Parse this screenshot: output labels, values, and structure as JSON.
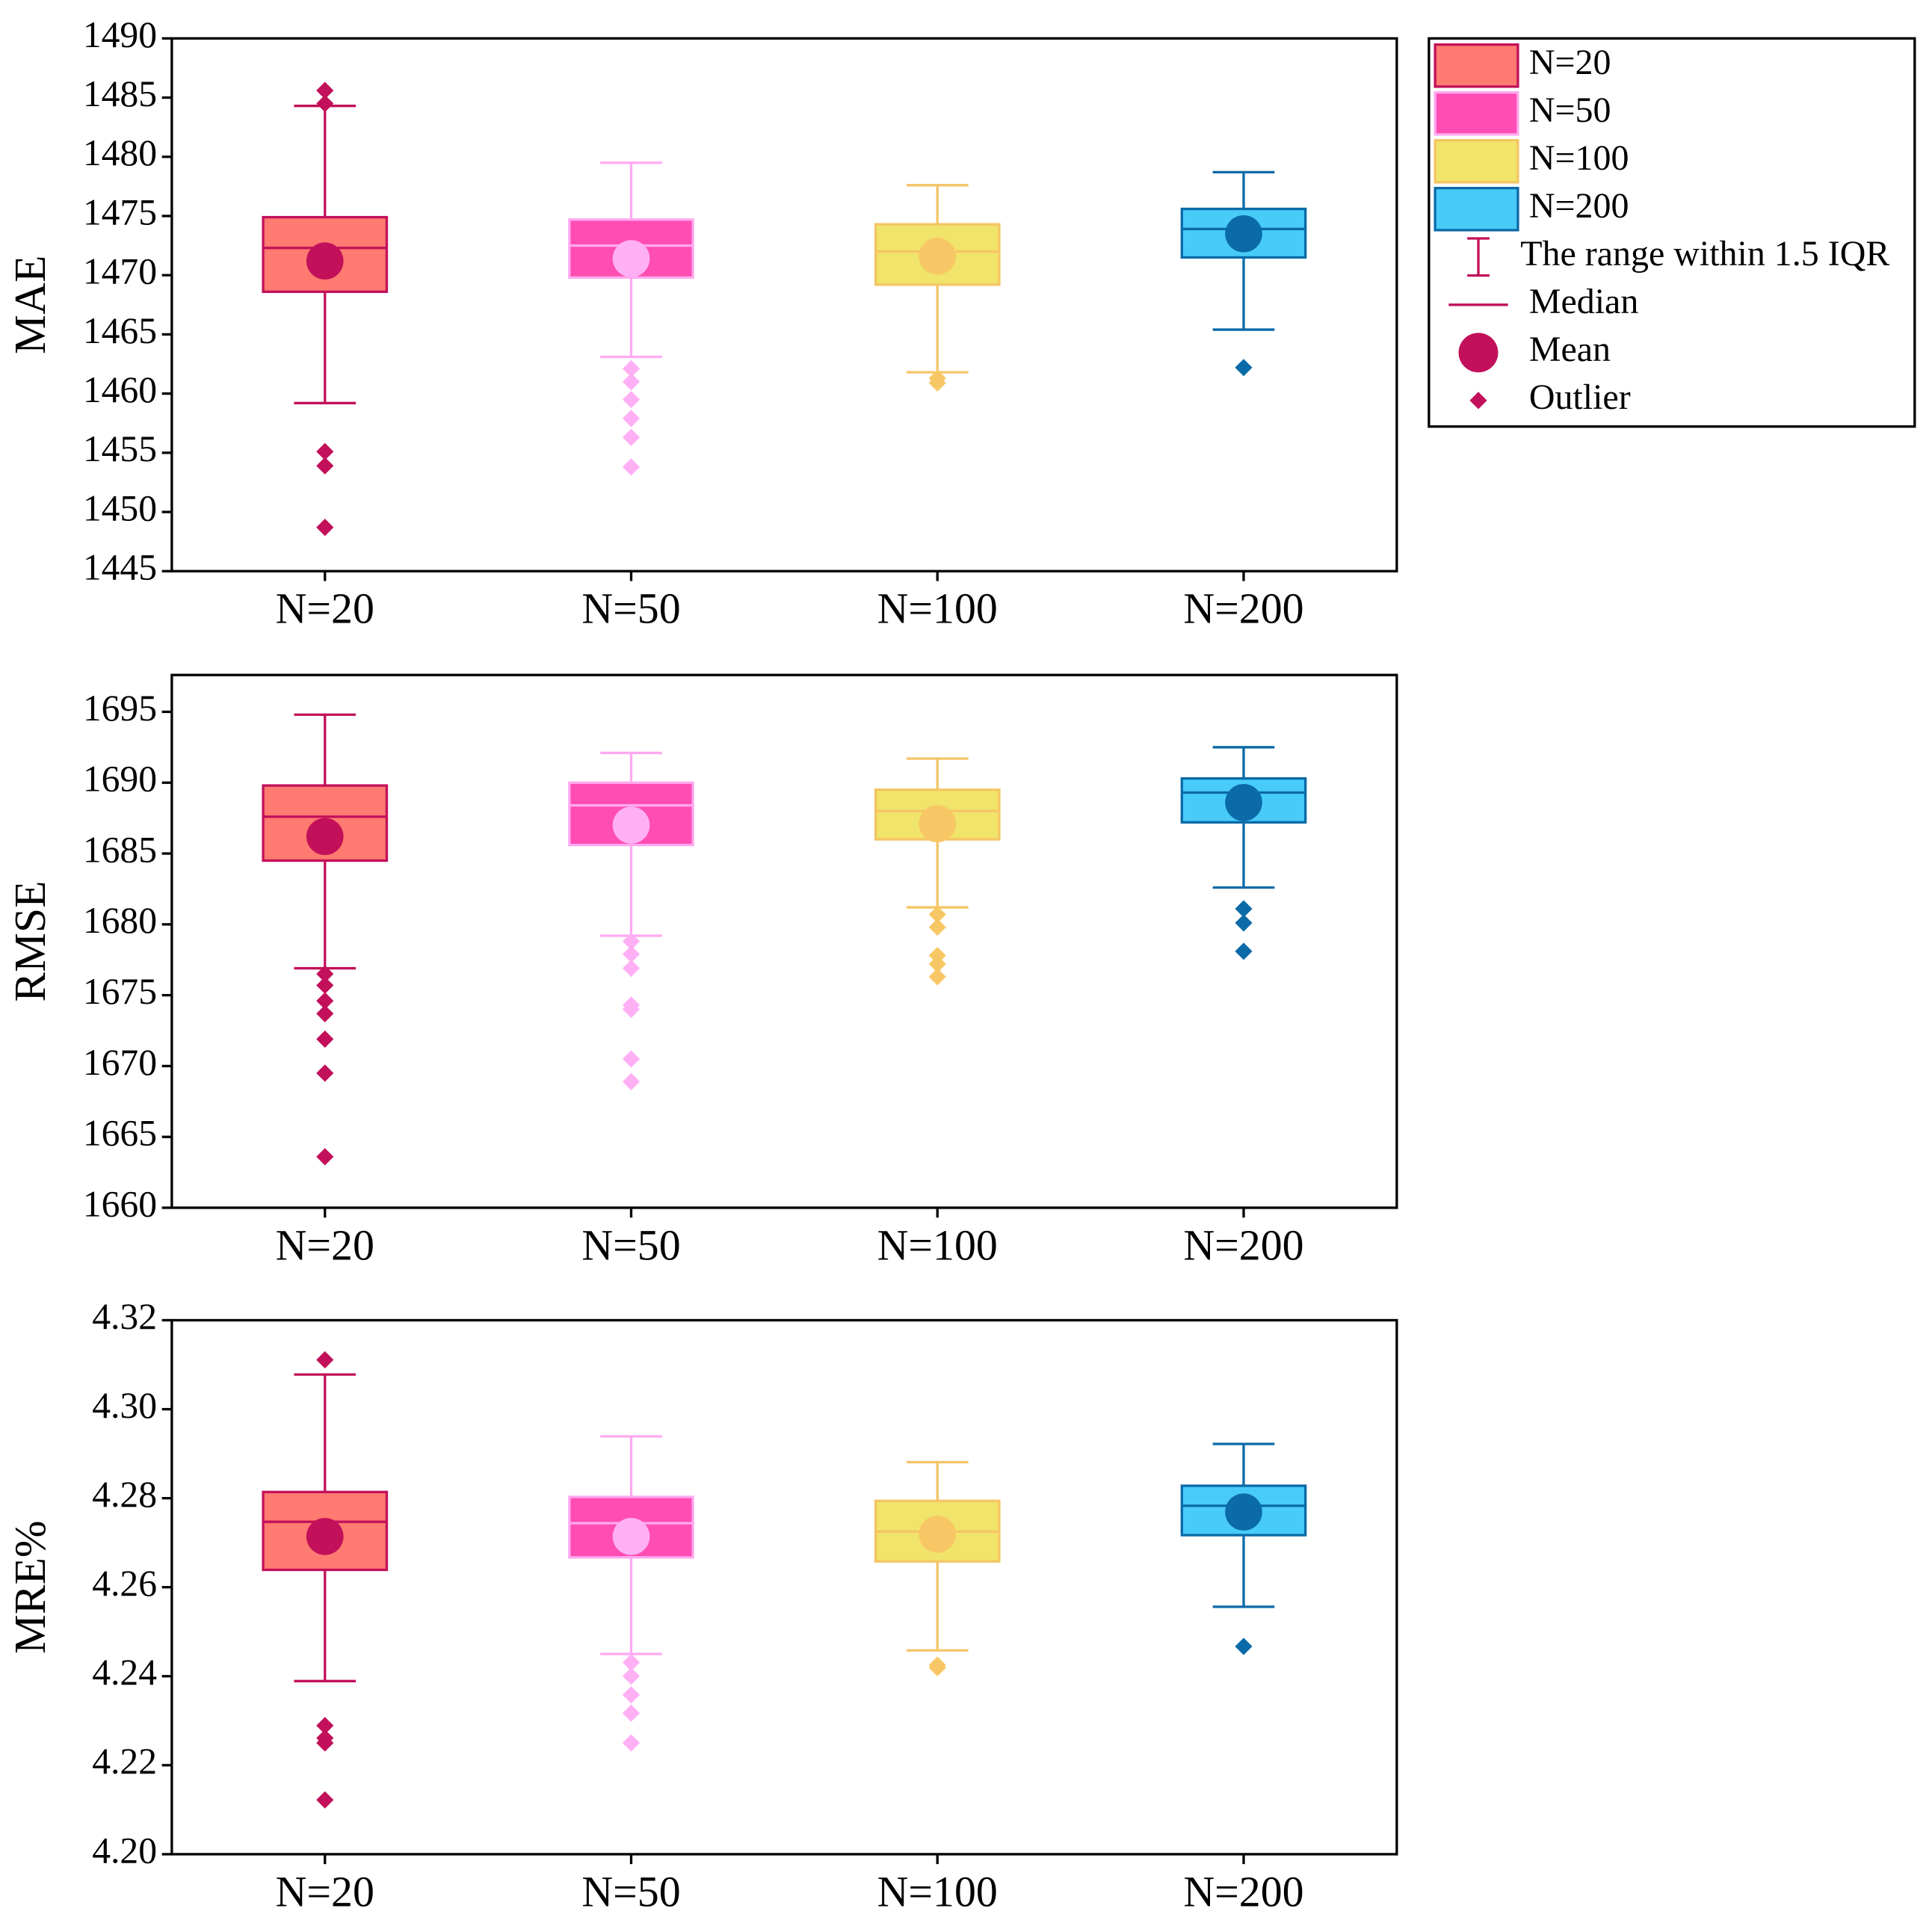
{
  "chart_data": [
    {
      "type": "box",
      "y_label": "MAE",
      "categories": [
        "N=20",
        "N=50",
        "N=100",
        "N=200"
      ],
      "fill_colors": [
        "#ff7a70",
        "#ff4db3",
        "#f0e46a",
        "#48cbf8"
      ],
      "line_colors": [
        "#c2105a",
        "#ffaaf0",
        "#f5c565",
        "#0b6aa8"
      ],
      "point_colors": [
        "#c2105a",
        "#ffb0f5",
        "#f8c765",
        "#0b6aa8"
      ],
      "ylim": [
        1445,
        1490
      ],
      "yticks": [
        1445,
        1450,
        1455,
        1460,
        1465,
        1470,
        1475,
        1480,
        1485,
        1490
      ],
      "boxes": [
        {
          "whisker_low": 1459.2,
          "q1": 1468.6,
          "median": 1472.3,
          "q3": 1474.9,
          "whisker_high": 1484.3,
          "mean": 1471.2,
          "outliers": [
            1485.6,
            1484.5,
            1455.1,
            1453.9,
            1448.7
          ]
        },
        {
          "whisker_low": 1463.1,
          "q1": 1469.8,
          "median": 1472.5,
          "q3": 1474.7,
          "whisker_high": 1479.5,
          "mean": 1471.4,
          "outliers": [
            1462.1,
            1461.0,
            1459.5,
            1457.9,
            1456.3,
            1453.8
          ]
        },
        {
          "whisker_low": 1461.8,
          "q1": 1469.2,
          "median": 1472.0,
          "q3": 1474.3,
          "whisker_high": 1477.6,
          "mean": 1471.6,
          "outliers": [
            1461.3,
            1460.9
          ]
        },
        {
          "whisker_low": 1465.4,
          "q1": 1471.5,
          "median": 1473.9,
          "q3": 1475.6,
          "whisker_high": 1478.7,
          "mean": 1473.5,
          "outliers": [
            1462.2
          ]
        }
      ],
      "legend": {
        "corner": "outside-right",
        "items": [
          "The range within 1.5 IQR",
          "Median",
          "Mean",
          "Outlier"
        ]
      }
    },
    {
      "type": "box",
      "y_label": "RMSE",
      "categories": [
        "N=20",
        "N=50",
        "N=100",
        "N=200"
      ],
      "fill_colors": [
        "#ff7a70",
        "#ff4db3",
        "#f0e46a",
        "#48cbf8"
      ],
      "line_colors": [
        "#c2105a",
        "#ffaaf0",
        "#f5c565",
        "#0b6aa8"
      ],
      "point_colors": [
        "#c2105a",
        "#ffb0f5",
        "#f8c765",
        "#0b6aa8"
      ],
      "ylim": [
        1660,
        1697.6
      ],
      "yticks": [
        1660,
        1665,
        1670,
        1675,
        1680,
        1685,
        1690,
        1695
      ],
      "boxes": [
        {
          "whisker_low": 1676.9,
          "q1": 1684.5,
          "median": 1687.6,
          "q3": 1689.8,
          "whisker_high": 1694.8,
          "mean": 1686.2,
          "outliers": [
            1676.5,
            1675.7,
            1674.6,
            1673.7,
            1671.9,
            1669.5,
            1663.6
          ]
        },
        {
          "whisker_low": 1679.2,
          "q1": 1685.6,
          "median": 1688.4,
          "q3": 1690.0,
          "whisker_high": 1692.1,
          "mean": 1687.0,
          "outliers": [
            1678.8,
            1677.9,
            1676.9,
            1674.3,
            1674.0,
            1670.5,
            1668.9
          ]
        },
        {
          "whisker_low": 1681.2,
          "q1": 1686.0,
          "median": 1688.0,
          "q3": 1689.5,
          "whisker_high": 1691.7,
          "mean": 1687.1,
          "outliers": [
            1680.7,
            1679.8,
            1677.8,
            1677.2,
            1676.3
          ]
        },
        {
          "whisker_low": 1682.6,
          "q1": 1687.2,
          "median": 1689.3,
          "q3": 1690.3,
          "whisker_high": 1692.5,
          "mean": 1688.6,
          "outliers": [
            1681.1,
            1680.1,
            1678.1
          ]
        }
      ]
    },
    {
      "type": "box",
      "y_label": "MRE%",
      "categories": [
        "N=20",
        "N=50",
        "N=100",
        "N=200"
      ],
      "fill_colors": [
        "#ff7a70",
        "#ff4db3",
        "#f0e46a",
        "#48cbf8"
      ],
      "line_colors": [
        "#c2105a",
        "#ffaaf0",
        "#f5c565",
        "#0b6aa8"
      ],
      "point_colors": [
        "#c2105a",
        "#ffb0f5",
        "#f8c765",
        "#0b6aa8"
      ],
      "ylim": [
        4.2,
        4.32
      ],
      "yticks": [
        {
          "value": 4.2,
          "label": "4.20"
        },
        4.22,
        4.24,
        4.26,
        4.28,
        {
          "value": 4.3,
          "label": "4.30"
        },
        4.32
      ],
      "boxes": [
        {
          "whisker_low": 4.2389,
          "q1": 4.2639,
          "median": 4.2747,
          "q3": 4.2814,
          "whisker_high": 4.3078,
          "mean": 4.2714,
          "outliers": [
            4.3111,
            4.2289,
            4.2261,
            4.225,
            4.2122
          ]
        },
        {
          "whisker_low": 4.245,
          "q1": 4.2667,
          "median": 4.2744,
          "q3": 4.2803,
          "whisker_high": 4.2939,
          "mean": 4.2714,
          "outliers": [
            4.2431,
            4.24,
            4.2358,
            4.2317,
            4.225
          ]
        },
        {
          "whisker_low": 4.2458,
          "q1": 4.2658,
          "median": 4.2725,
          "q3": 4.2794,
          "whisker_high": 4.2881,
          "mean": 4.2719,
          "outliers": [
            4.2425,
            4.2419
          ]
        },
        {
          "whisker_low": 4.2556,
          "q1": 4.2717,
          "median": 4.2783,
          "q3": 4.2828,
          "whisker_high": 4.2922,
          "mean": 4.2769,
          "outliers": [
            4.2467
          ]
        }
      ]
    }
  ]
}
